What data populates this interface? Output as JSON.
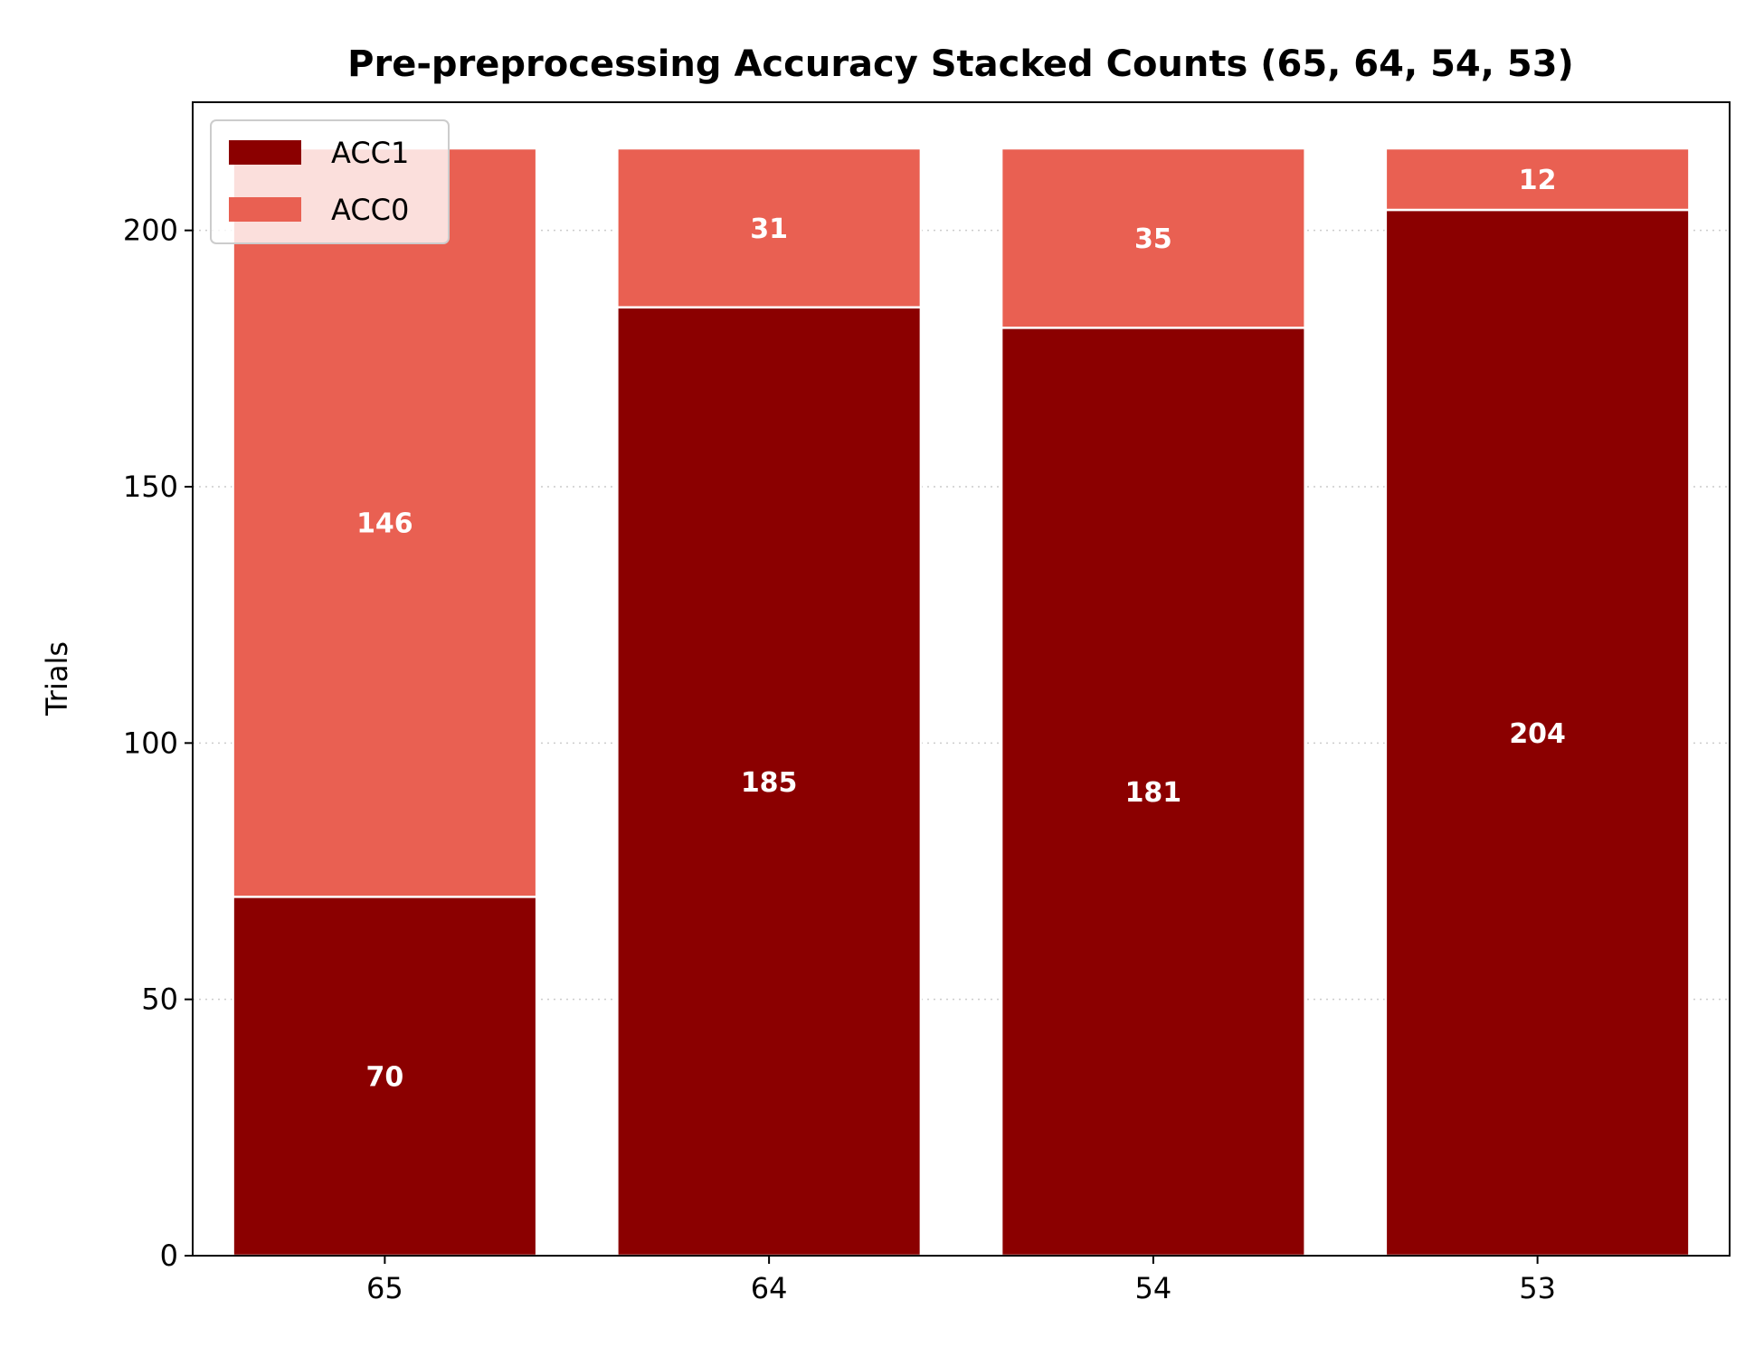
{
  "chart_data": {
    "type": "bar",
    "stacked": true,
    "title": "Pre-preprocessing Accuracy Stacked Counts (65, 64, 54, 53)",
    "xlabel": "",
    "ylabel": "Trials",
    "categories": [
      "65",
      "64",
      "54",
      "53"
    ],
    "series": [
      {
        "name": "ACC1",
        "values": [
          70,
          185,
          181,
          204
        ],
        "color": "#8b0000"
      },
      {
        "name": "ACC0",
        "values": [
          146,
          31,
          35,
          12
        ],
        "color": "#e96052"
      }
    ],
    "ylim": [
      0,
      225
    ],
    "yticks": [
      0,
      50,
      100,
      150,
      200
    ],
    "grid": "y-dotted",
    "legend": "top-left",
    "data_labels": true
  }
}
